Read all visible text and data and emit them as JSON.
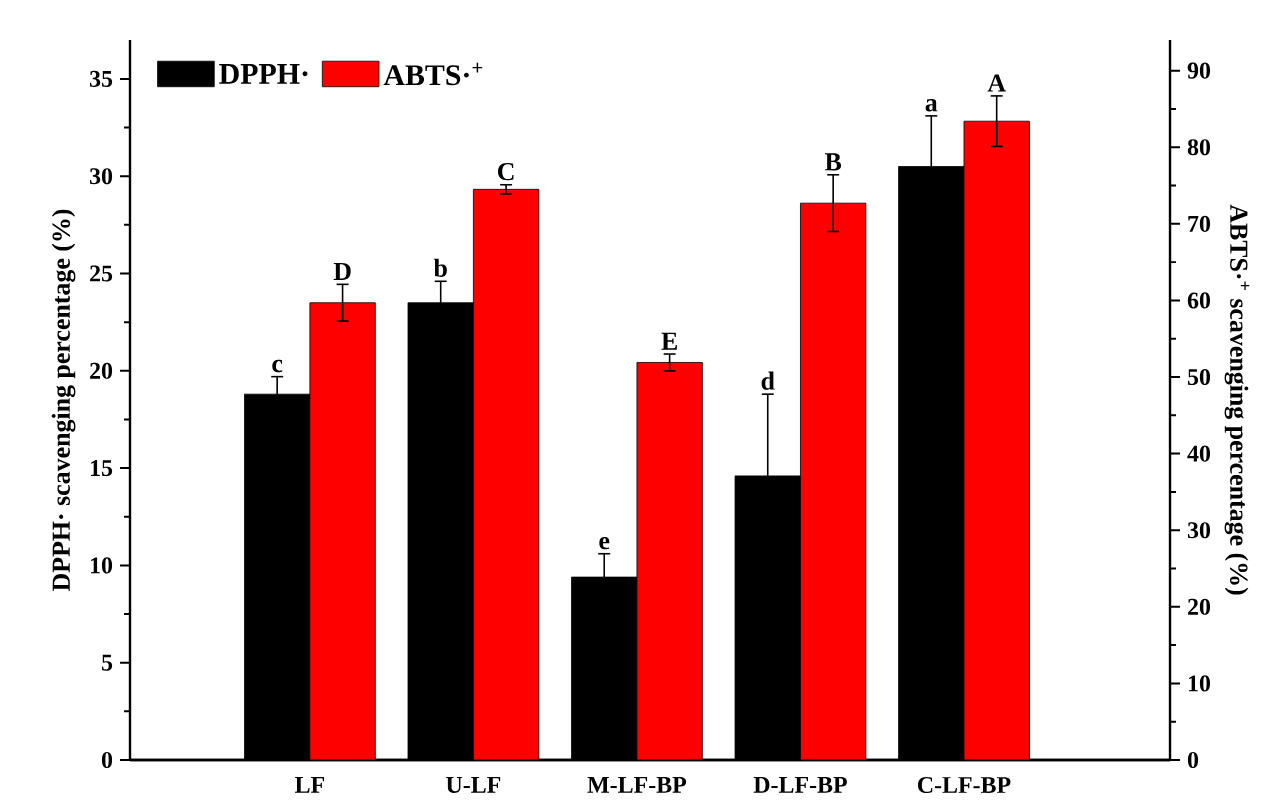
{
  "chart_data": {
    "type": "bar",
    "categories": [
      "LF",
      "U-LF",
      "M-LF-BP",
      "D-LF-BP",
      "C-LF-BP"
    ],
    "ylabel": "DPPH· scavenging percentage (%)",
    "y2label": "ABTS·$^{+}$ scavenging percentage (%)",
    "series": [
      {
        "name": "DPPH·",
        "color": "#000000",
        "values": [
          18.8,
          23.5,
          9.4,
          14.6,
          30.5
        ],
        "errors": [
          0.9,
          1.1,
          1.2,
          4.2,
          2.6
        ]
      },
      {
        "name": "ABTS·$^{+}$",
        "color": "#ff0000",
        "axis": "y2",
        "values": [
          59.7,
          74.5,
          51.9,
          72.7,
          83.4
        ],
        "errors": [
          2.4,
          0.6,
          1.1,
          3.7,
          3.3
        ]
      }
    ],
    "ylim": [
      0,
      37
    ],
    "yticks": [
      0,
      5,
      10,
      15,
      20,
      25,
      30,
      35
    ],
    "y2lim": [
      0,
      94
    ],
    "y2ticks": [
      0,
      10,
      20,
      30,
      40,
      50,
      60,
      70,
      80,
      90
    ],
    "legend": "top left",
    "annotations": [
      "c",
      "b",
      "e",
      "d",
      "a",
      "D",
      "C",
      "E",
      "B",
      "A"
    ]
  }
}
